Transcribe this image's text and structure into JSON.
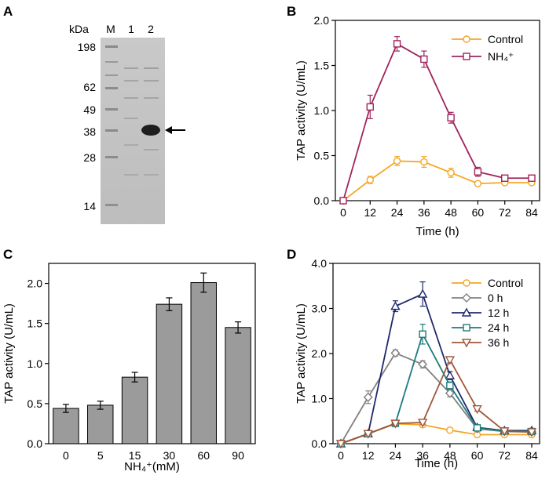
{
  "panels": {
    "A": {
      "label": "A"
    },
    "B": {
      "label": "B"
    },
    "C": {
      "label": "C"
    },
    "D": {
      "label": "D"
    }
  },
  "colors": {
    "control": "#F5A623",
    "nh4": "#A0245C",
    "h0": "#808080",
    "h12": "#1F2A6B",
    "h24": "#1C7C7D",
    "h36": "#A0573A",
    "bar": "#9B9B9B"
  },
  "gel": {
    "unit_label": "kDa",
    "lane_labels": [
      "M",
      "1",
      "2"
    ],
    "marker_values": [
      "198",
      "62",
      "49",
      "38",
      "28",
      "14"
    ],
    "arrow_icon": "left-arrow-icon"
  },
  "chart_data": [
    {
      "panel": "B",
      "type": "line",
      "title": "",
      "xlabel": "Time (h)",
      "ylabel": "TAP activity (U/mL)",
      "x": [
        0,
        12,
        24,
        36,
        48,
        60,
        72,
        84
      ],
      "xticks": [
        "0",
        "12",
        "24",
        "36",
        "48",
        "60",
        "72",
        "84"
      ],
      "xlim": [
        0,
        84
      ],
      "ylim": [
        0,
        2.0
      ],
      "yticks": [
        0,
        0.5,
        1.0,
        1.5,
        2.0
      ],
      "ytick_labels": [
        "0.0",
        "0.5",
        "1.0",
        "1.5",
        "2.0"
      ],
      "legend_position": "top-right",
      "series": [
        {
          "name": "Control",
          "marker": "circle",
          "color_key": "control",
          "values": [
            0.0,
            0.23,
            0.44,
            0.43,
            0.31,
            0.19,
            0.2,
            0.2
          ],
          "errors": [
            0,
            0.04,
            0.05,
            0.06,
            0.05,
            0.02,
            0.02,
            0.02
          ]
        },
        {
          "name": "NH₄⁺",
          "marker": "square",
          "color_key": "nh4",
          "values": [
            0.0,
            1.04,
            1.74,
            1.57,
            0.92,
            0.32,
            0.25,
            0.25
          ],
          "errors": [
            0,
            0.13,
            0.08,
            0.09,
            0.06,
            0.05,
            0.03,
            0.02
          ]
        }
      ]
    },
    {
      "panel": "C",
      "type": "bar",
      "title": "",
      "xlabel": "NH₄⁺(mM)",
      "ylabel": "TAP activity (U/mL)",
      "categories": [
        "0",
        "5",
        "15",
        "30",
        "60",
        "90"
      ],
      "values": [
        0.44,
        0.48,
        0.83,
        1.74,
        2.01,
        1.45
      ],
      "errors": [
        0.05,
        0.05,
        0.06,
        0.08,
        0.12,
        0.07
      ],
      "ylim": [
        0,
        2.25
      ],
      "yticks": [
        0,
        0.5,
        1.0,
        1.5,
        2.0
      ],
      "ytick_labels": [
        "0.0",
        "0.5",
        "1.0",
        "1.5",
        "2.0"
      ]
    },
    {
      "panel": "D",
      "type": "line",
      "title": "",
      "xlabel": "Time (h)",
      "ylabel": "TAP activity (U/mL)",
      "x": [
        0,
        12,
        24,
        36,
        48,
        60,
        72,
        84
      ],
      "xticks": [
        "0",
        "12",
        "24",
        "36",
        "48",
        "60",
        "72",
        "84"
      ],
      "xlim": [
        0,
        84
      ],
      "ylim": [
        0,
        4.0
      ],
      "yticks": [
        0,
        1.0,
        2.0,
        3.0,
        4.0
      ],
      "ytick_labels": [
        "0.0",
        "1.0",
        "2.0",
        "3.0",
        "4.0"
      ],
      "legend_position": "top-right",
      "series": [
        {
          "name": "Control",
          "marker": "circle",
          "color_key": "control",
          "values": [
            0.0,
            0.22,
            0.44,
            0.42,
            0.3,
            0.2,
            0.2,
            0.2
          ],
          "errors": [
            0,
            0.03,
            0.04,
            0.05,
            0.03,
            0.02,
            0.02,
            0.02
          ]
        },
        {
          "name": " 0 h",
          "marker": "diamond",
          "color_key": "h0",
          "values": [
            0.0,
            1.03,
            2.01,
            1.76,
            1.12,
            0.33,
            0.27,
            0.26
          ],
          "errors": [
            0,
            0.14,
            0.07,
            0.08,
            0.08,
            0.05,
            0.03,
            0.03
          ]
        },
        {
          "name": "12 h",
          "marker": "triangle-up",
          "color_key": "h12",
          "values": [
            0.0,
            0.22,
            3.05,
            3.32,
            1.51,
            0.36,
            0.29,
            0.29
          ],
          "errors": [
            0,
            0.04,
            0.12,
            0.27,
            0.09,
            0.05,
            0.03,
            0.03
          ]
        },
        {
          "name": "24 h",
          "marker": "square",
          "color_key": "h24",
          "values": [
            0.0,
            0.22,
            0.45,
            2.43,
            1.29,
            0.35,
            0.28,
            0.27
          ],
          "errors": [
            0,
            0.03,
            0.04,
            0.22,
            0.08,
            0.05,
            0.03,
            0.03
          ]
        },
        {
          "name": "36 h",
          "marker": "triangle-down",
          "color_key": "h36",
          "values": [
            0.0,
            0.22,
            0.45,
            0.47,
            1.86,
            0.77,
            0.28,
            0.26
          ],
          "errors": [
            0,
            0.03,
            0.04,
            0.05,
            0.07,
            0.05,
            0.03,
            0.03
          ]
        }
      ]
    }
  ]
}
